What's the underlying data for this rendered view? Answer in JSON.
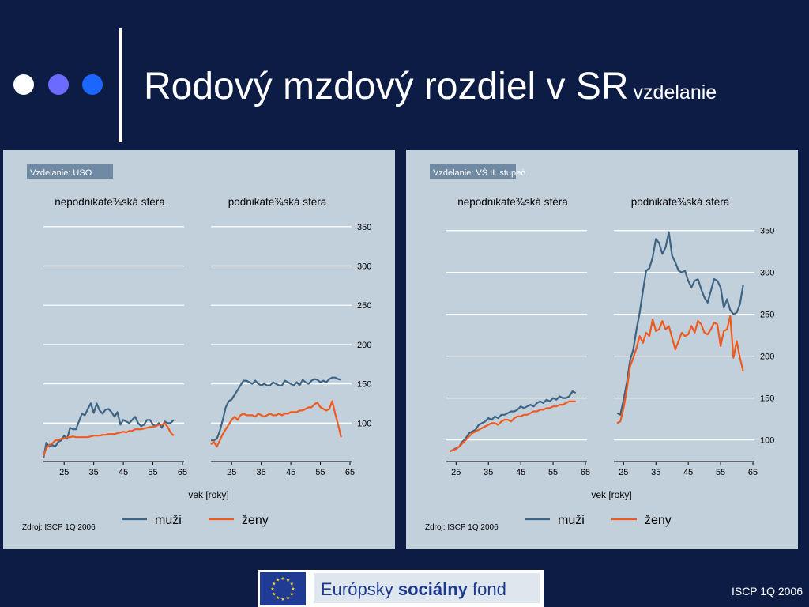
{
  "title": {
    "main": "Rodový mzdový rozdiel v SR",
    "sub": "vzdelanie"
  },
  "footer": "ISCP 1Q 2006",
  "logo": {
    "text_before": "Európsky ",
    "text_bold": "sociálny",
    "text_after": " fond"
  },
  "colors": {
    "background": "#0d1c45",
    "panel": "#c2d0dc",
    "muzi": "#3e6484",
    "zeny": "#f05a1e",
    "dots": [
      "#ffffff",
      "#6b6bff",
      "#1a66ff"
    ]
  },
  "chart_data": [
    {
      "type": "line",
      "tag": "Vzdelanie: USO",
      "xlabel": "vek [roky]",
      "source": "Zdroj: ISCP 1Q 2006",
      "xticks": [
        25,
        35,
        45,
        55,
        65
      ],
      "yticks": [
        100,
        150,
        200,
        250,
        300,
        350
      ],
      "ylim": [
        53,
        375
      ],
      "xlim": [
        18,
        65
      ],
      "legend": [
        "muži",
        "ženy"
      ],
      "legend_position": "bottom",
      "panels": [
        {
          "title": "nepodnikate¾ská sféra",
          "series": [
            {
              "name": "muži",
              "x": [
                18,
                19,
                20,
                21,
                22,
                23,
                24,
                25,
                26,
                27,
                28,
                29,
                30,
                31,
                32,
                33,
                34,
                35,
                36,
                37,
                38,
                39,
                40,
                41,
                42,
                43,
                44,
                45,
                46,
                47,
                48,
                49,
                50,
                51,
                52,
                53,
                54,
                55,
                56,
                57,
                58,
                59,
                60,
                61,
                62
              ],
              "values": [
                55,
                75,
                70,
                72,
                70,
                76,
                78,
                84,
                80,
                94,
                92,
                92,
                102,
                112,
                110,
                118,
                125,
                113,
                125,
                116,
                112,
                117,
                118,
                114,
                108,
                114,
                98,
                104,
                102,
                100,
                104,
                108,
                100,
                96,
                98,
                104,
                104,
                98,
                96,
                100,
                94,
                102,
                100,
                100,
                104
              ]
            },
            {
              "name": "ženy",
              "x": [
                18,
                19,
                20,
                21,
                22,
                23,
                24,
                25,
                26,
                27,
                28,
                29,
                30,
                31,
                32,
                33,
                34,
                35,
                36,
                37,
                38,
                39,
                40,
                41,
                42,
                43,
                44,
                45,
                46,
                47,
                48,
                49,
                50,
                51,
                52,
                53,
                54,
                55,
                56,
                57,
                58,
                59,
                60,
                61,
                62
              ],
              "values": [
                58,
                68,
                72,
                74,
                78,
                78,
                80,
                80,
                82,
                82,
                83,
                82,
                82,
                82,
                82,
                82,
                83,
                84,
                84,
                84,
                85,
                85,
                86,
                86,
                86,
                87,
                88,
                89,
                88,
                90,
                90,
                92,
                92,
                92,
                93,
                94,
                95,
                95,
                96,
                98,
                98,
                100,
                95,
                88,
                84
              ]
            }
          ]
        },
        {
          "title": "podnikate¾ská sféra",
          "series": [
            {
              "name": "muži",
              "x": [
                18,
                19,
                20,
                21,
                22,
                23,
                24,
                25,
                26,
                27,
                28,
                29,
                30,
                31,
                32,
                33,
                34,
                35,
                36,
                37,
                38,
                39,
                40,
                41,
                42,
                43,
                44,
                45,
                46,
                47,
                48,
                49,
                50,
                51,
                52,
                53,
                54,
                55,
                56,
                57,
                58,
                59,
                60,
                61,
                62
              ],
              "values": [
                78,
                78,
                80,
                90,
                104,
                120,
                128,
                130,
                136,
                142,
                148,
                154,
                154,
                152,
                150,
                154,
                150,
                148,
                150,
                148,
                148,
                152,
                150,
                148,
                148,
                154,
                152,
                150,
                148,
                152,
                148,
                155,
                152,
                150,
                154,
                156,
                155,
                152,
                154,
                152,
                156,
                158,
                158,
                156,
                155
              ]
            },
            {
              "name": "ženy",
              "x": [
                18,
                19,
                20,
                21,
                22,
                23,
                24,
                25,
                26,
                27,
                28,
                29,
                30,
                31,
                32,
                33,
                34,
                35,
                36,
                37,
                38,
                39,
                40,
                41,
                42,
                43,
                44,
                45,
                46,
                47,
                48,
                49,
                50,
                51,
                52,
                53,
                54,
                55,
                56,
                57,
                58,
                59,
                60,
                61,
                62
              ],
              "values": [
                73,
                76,
                70,
                78,
                86,
                92,
                98,
                104,
                108,
                104,
                110,
                112,
                110,
                110,
                110,
                108,
                112,
                110,
                108,
                110,
                112,
                110,
                110,
                112,
                110,
                112,
                112,
                114,
                114,
                114,
                116,
                116,
                118,
                120,
                120,
                124,
                126,
                120,
                118,
                116,
                118,
                128,
                112,
                98,
                82
              ]
            }
          ]
        }
      ]
    },
    {
      "type": "line",
      "tag": "Vzdelanie: VŠ II. stupeò",
      "xlabel": "vek [roky]",
      "source": "Zdroj: ISCP 1Q 2006",
      "xticks": [
        25,
        35,
        45,
        55,
        65
      ],
      "yticks": [
        100,
        150,
        200,
        250,
        300,
        350
      ],
      "ylim": [
        76,
        378
      ],
      "xlim": [
        22,
        65
      ],
      "legend": [
        "muži",
        "ženy"
      ],
      "legend_position": "bottom",
      "panels": [
        {
          "title": "nepodnikate¾ská sféra",
          "series": [
            {
              "name": "muži",
              "x": [
                23,
                24,
                25,
                26,
                27,
                28,
                29,
                30,
                31,
                32,
                33,
                34,
                35,
                36,
                37,
                38,
                39,
                40,
                41,
                42,
                43,
                44,
                45,
                46,
                47,
                48,
                49,
                50,
                51,
                52,
                53,
                54,
                55,
                56,
                57,
                58,
                59,
                60,
                61,
                62
              ],
              "values": [
                86,
                88,
                90,
                92,
                98,
                102,
                108,
                110,
                112,
                118,
                120,
                122,
                126,
                124,
                128,
                126,
                130,
                130,
                132,
                134,
                134,
                136,
                140,
                138,
                140,
                142,
                140,
                144,
                146,
                144,
                148,
                146,
                150,
                148,
                152,
                150,
                150,
                152,
                158,
                156
              ]
            },
            {
              "name": "ženy",
              "x": [
                23,
                24,
                25,
                26,
                27,
                28,
                29,
                30,
                31,
                32,
                33,
                34,
                35,
                36,
                37,
                38,
                39,
                40,
                41,
                42,
                43,
                44,
                45,
                46,
                47,
                48,
                49,
                50,
                51,
                52,
                53,
                54,
                55,
                56,
                57,
                58,
                59,
                60,
                61,
                62
              ],
              "values": [
                86,
                88,
                89,
                92,
                96,
                100,
                104,
                108,
                110,
                112,
                114,
                116,
                118,
                120,
                120,
                118,
                122,
                124,
                124,
                122,
                126,
                128,
                128,
                130,
                130,
                132,
                134,
                134,
                136,
                136,
                138,
                138,
                140,
                140,
                142,
                142,
                144,
                146,
                146,
                146
              ]
            }
          ]
        },
        {
          "title": "podnikate¾ská sféra",
          "series": [
            {
              "name": "muži",
              "x": [
                23,
                24,
                25,
                26,
                27,
                28,
                29,
                30,
                31,
                32,
                33,
                34,
                35,
                36,
                37,
                38,
                39,
                40,
                41,
                42,
                43,
                44,
                45,
                46,
                47,
                48,
                49,
                50,
                51,
                52,
                53,
                54,
                55,
                56,
                57,
                58,
                59,
                60,
                61,
                62
              ],
              "values": [
                132,
                130,
                148,
                168,
                195,
                208,
                232,
                252,
                278,
                302,
                305,
                318,
                340,
                335,
                322,
                330,
                348,
                320,
                312,
                302,
                300,
                302,
                290,
                282,
                290,
                292,
                280,
                270,
                264,
                278,
                292,
                290,
                282,
                258,
                268,
                255,
                250,
                252,
                262,
                285
              ]
            },
            {
              "name": "ženy",
              "x": [
                23,
                24,
                25,
                26,
                27,
                28,
                29,
                30,
                31,
                32,
                33,
                34,
                35,
                36,
                37,
                38,
                39,
                40,
                41,
                42,
                43,
                44,
                45,
                46,
                47,
                48,
                49,
                50,
                51,
                52,
                53,
                54,
                55,
                56,
                57,
                58,
                59,
                60,
                61,
                62
              ],
              "values": [
                120,
                122,
                138,
                160,
                188,
                198,
                210,
                224,
                216,
                228,
                224,
                244,
                230,
                232,
                242,
                232,
                236,
                222,
                208,
                218,
                228,
                224,
                226,
                236,
                228,
                242,
                238,
                228,
                226,
                232,
                240,
                238,
                212,
                230,
                232,
                248,
                198,
                218,
                198,
                182
              ]
            }
          ]
        }
      ]
    }
  ]
}
